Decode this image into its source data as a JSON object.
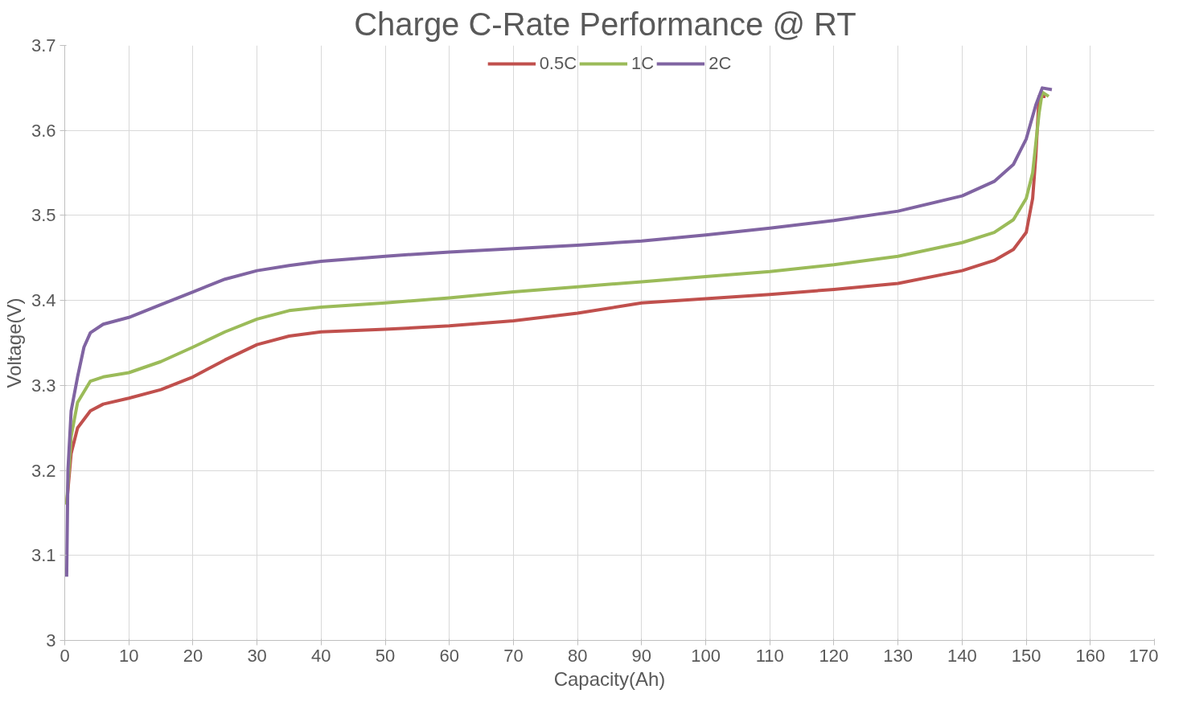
{
  "chart_data": {
    "type": "line",
    "title": "Charge C-Rate Performance  @ RT",
    "xlabel": "Capacity(Ah)",
    "ylabel": "Voltage(V)",
    "xlim": [
      0,
      170
    ],
    "xticks": [
      0,
      10,
      20,
      30,
      40,
      50,
      60,
      70,
      80,
      90,
      100,
      110,
      120,
      130,
      140,
      150,
      160,
      170
    ],
    "ylim": [
      3,
      3.7
    ],
    "yticks": [
      3,
      3.1,
      3.2,
      3.3,
      3.4,
      3.5,
      3.6,
      3.7
    ],
    "grid": true,
    "legend": "top",
    "marker": "none",
    "line_style": "solid",
    "series": [
      {
        "name": "0.5C",
        "color": "#c0504d",
        "x": [
          0.3,
          1,
          2,
          4,
          6,
          10,
          15,
          20,
          25,
          30,
          35,
          40,
          50,
          60,
          70,
          80,
          90,
          100,
          110,
          120,
          130,
          140,
          145,
          148,
          150,
          151,
          151.5,
          152,
          153
        ],
        "values": [
          3.16,
          3.22,
          3.25,
          3.27,
          3.278,
          3.285,
          3.295,
          3.31,
          3.33,
          3.348,
          3.358,
          3.363,
          3.366,
          3.37,
          3.376,
          3.385,
          3.397,
          3.402,
          3.407,
          3.413,
          3.42,
          3.435,
          3.447,
          3.46,
          3.48,
          3.52,
          3.57,
          3.64,
          3.64
        ]
      },
      {
        "name": "1C",
        "color": "#9bbb59",
        "x": [
          0.3,
          1,
          2,
          4,
          6,
          10,
          15,
          20,
          25,
          30,
          35,
          40,
          50,
          60,
          70,
          80,
          90,
          100,
          110,
          120,
          130,
          140,
          145,
          148,
          150,
          151,
          152,
          152.5,
          153.5
        ],
        "values": [
          3.16,
          3.24,
          3.28,
          3.305,
          3.31,
          3.315,
          3.328,
          3.345,
          3.363,
          3.378,
          3.388,
          3.392,
          3.397,
          3.403,
          3.41,
          3.416,
          3.422,
          3.428,
          3.434,
          3.442,
          3.452,
          3.468,
          3.48,
          3.495,
          3.52,
          3.55,
          3.62,
          3.645,
          3.64
        ]
      },
      {
        "name": "2C",
        "color": "#8064a2",
        "x": [
          0.3,
          0.5,
          1,
          2,
          3,
          4,
          6,
          10,
          15,
          20,
          25,
          30,
          35,
          40,
          50,
          60,
          70,
          80,
          90,
          100,
          110,
          120,
          130,
          140,
          145,
          148,
          150,
          151.5,
          152.5,
          154
        ],
        "values": [
          3.075,
          3.2,
          3.27,
          3.31,
          3.345,
          3.362,
          3.372,
          3.38,
          3.395,
          3.41,
          3.425,
          3.435,
          3.441,
          3.446,
          3.452,
          3.457,
          3.461,
          3.465,
          3.47,
          3.477,
          3.485,
          3.494,
          3.505,
          3.523,
          3.54,
          3.56,
          3.59,
          3.63,
          3.65,
          3.648
        ]
      }
    ]
  }
}
